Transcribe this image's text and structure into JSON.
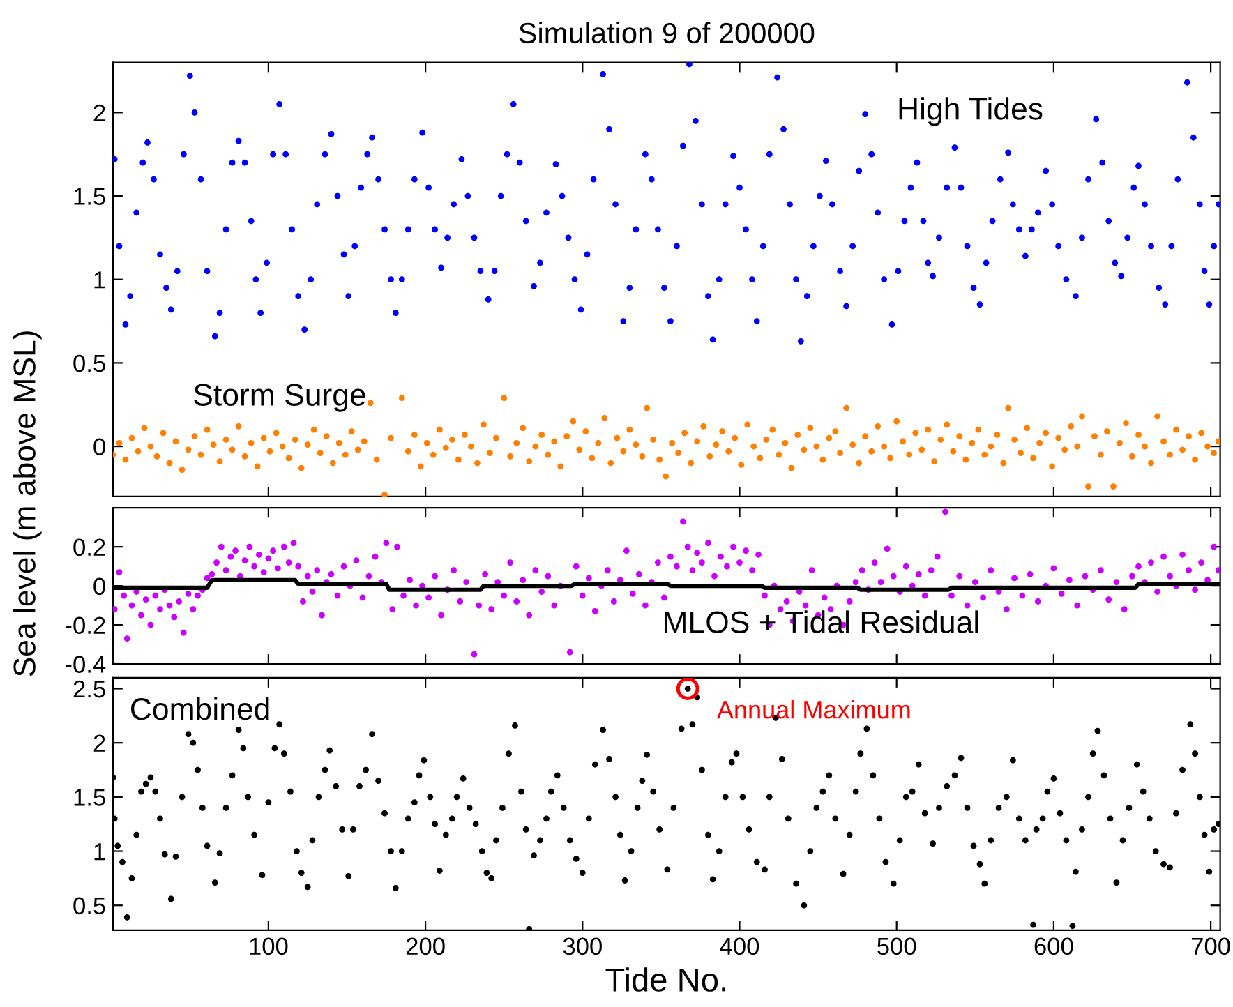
{
  "chart_data": [
    {
      "type": "scatter",
      "title": "Simulation 9 of 200000",
      "annotations": [
        "High Tides",
        "Storm Surge"
      ],
      "xlim": [
        1,
        706
      ],
      "ylim": [
        -0.3,
        2.3
      ],
      "xticks": [
        100,
        200,
        300,
        400,
        500,
        600,
        700
      ],
      "yticks": [
        0,
        0.5,
        1,
        1.5,
        2
      ],
      "tick_labels": "y",
      "series": [
        {
          "color": "#0000ff",
          "marker": "circle",
          "x": [
            1,
            2,
            5,
            9,
            12,
            16,
            20,
            23,
            27,
            31,
            35,
            38,
            42,
            46,
            50,
            53,
            57,
            61,
            66,
            69,
            73,
            77,
            81,
            85,
            89,
            92,
            95,
            99,
            103,
            107,
            111,
            115,
            119,
            123,
            127,
            131,
            136,
            140,
            144,
            148,
            151,
            155,
            159,
            163,
            166,
            170,
            174,
            178,
            181,
            185,
            189,
            193,
            198,
            202,
            206,
            210,
            214,
            218,
            223,
            227,
            231,
            235,
            240,
            244,
            248,
            252,
            256,
            260,
            264,
            269,
            273,
            277,
            283,
            287,
            291,
            295,
            299,
            303,
            307,
            313,
            317,
            321,
            326,
            330,
            334,
            340,
            344,
            348,
            352,
            356,
            360,
            364,
            368,
            372,
            376,
            380,
            383,
            387,
            391,
            396,
            400,
            404,
            408,
            411,
            415,
            419,
            424,
            428,
            432,
            436,
            439,
            443,
            447,
            451,
            455,
            459,
            464,
            468,
            472,
            476,
            480,
            484,
            488,
            492,
            497,
            501,
            505,
            509,
            513,
            517,
            520,
            523,
            527,
            532,
            537,
            541,
            545,
            549,
            553,
            557,
            561,
            566,
            571,
            574,
            578,
            582,
            586,
            590,
            595,
            599,
            603,
            608,
            614,
            618,
            622,
            627,
            631,
            635,
            639,
            643,
            647,
            651,
            654,
            658,
            662,
            667,
            671,
            675,
            679,
            685,
            689,
            693,
            696,
            699,
            702,
            705
          ],
          "values": [
            1.72,
            1.72,
            1.2,
            0.73,
            0.9,
            1.4,
            1.7,
            1.82,
            1.6,
            1.15,
            0.95,
            0.82,
            1.05,
            1.75,
            2.22,
            2.0,
            1.6,
            1.05,
            0.66,
            0.8,
            1.3,
            1.7,
            1.83,
            1.7,
            1.35,
            1.0,
            0.8,
            1.1,
            1.75,
            2.05,
            1.75,
            1.3,
            0.9,
            0.7,
            1.0,
            1.45,
            1.75,
            1.87,
            1.5,
            1.15,
            0.9,
            1.2,
            1.55,
            1.75,
            1.85,
            1.6,
            1.3,
            1.0,
            0.8,
            1.0,
            1.3,
            1.6,
            1.88,
            1.55,
            1.3,
            1.07,
            1.25,
            1.45,
            1.72,
            1.5,
            1.25,
            1.05,
            0.88,
            1.05,
            1.5,
            1.75,
            2.05,
            1.7,
            1.35,
            0.96,
            1.1,
            1.4,
            1.69,
            1.5,
            1.25,
            1.0,
            0.82,
            1.15,
            1.6,
            2.23,
            1.9,
            1.45,
            0.75,
            0.95,
            1.3,
            1.75,
            1.6,
            1.3,
            0.95,
            0.75,
            1.2,
            1.8,
            2.29,
            1.95,
            1.45,
            0.9,
            0.64,
            1.0,
            1.45,
            1.74,
            1.55,
            1.3,
            1.0,
            0.75,
            1.2,
            1.75,
            2.21,
            1.9,
            1.45,
            1.0,
            0.63,
            0.9,
            1.2,
            1.5,
            1.71,
            1.45,
            1.05,
            0.84,
            1.2,
            1.65,
            1.99,
            1.75,
            1.4,
            1.0,
            0.73,
            1.05,
            1.35,
            1.55,
            1.7,
            1.35,
            1.1,
            1.02,
            1.25,
            1.55,
            1.79,
            1.55,
            1.2,
            0.95,
            0.85,
            1.1,
            1.35,
            1.6,
            1.76,
            1.45,
            1.3,
            1.14,
            1.3,
            1.4,
            1.65,
            1.45,
            1.2,
            1.0,
            0.9,
            1.25,
            1.6,
            1.96,
            1.7,
            1.35,
            1.1,
            1.02,
            1.25,
            1.55,
            1.68,
            1.45,
            1.2,
            0.95,
            0.85,
            1.2,
            1.6,
            2.18,
            1.85,
            1.45,
            1.05,
            0.85,
            1.2,
            1.45
          ]
        },
        {
          "color": "#ff8000",
          "marker": "circle",
          "x": [
            1,
            5,
            9,
            13,
            17,
            21,
            25,
            29,
            33,
            37,
            41,
            45,
            49,
            53,
            57,
            61,
            65,
            69,
            73,
            77,
            81,
            85,
            89,
            93,
            97,
            101,
            105,
            109,
            113,
            117,
            121,
            125,
            129,
            133,
            137,
            141,
            145,
            149,
            153,
            157,
            161,
            165,
            169,
            174,
            178,
            185,
            189,
            193,
            197,
            201,
            205,
            209,
            213,
            217,
            221,
            225,
            229,
            233,
            237,
            241,
            245,
            250,
            254,
            258,
            262,
            266,
            270,
            274,
            278,
            282,
            286,
            290,
            294,
            298,
            302,
            306,
            310,
            314,
            318,
            322,
            326,
            330,
            334,
            338,
            341,
            345,
            349,
            353,
            357,
            361,
            365,
            369,
            373,
            377,
            381,
            385,
            389,
            393,
            397,
            401,
            405,
            409,
            413,
            417,
            421,
            425,
            429,
            433,
            437,
            441,
            445,
            449,
            453,
            457,
            461,
            464,
            468,
            472,
            476,
            480,
            484,
            488,
            492,
            496,
            500,
            504,
            508,
            512,
            516,
            520,
            524,
            528,
            532,
            536,
            540,
            544,
            548,
            552,
            556,
            560,
            564,
            568,
            571,
            575,
            579,
            583,
            587,
            591,
            595,
            599,
            603,
            607,
            611,
            615,
            618,
            622,
            626,
            630,
            634,
            638,
            642,
            646,
            650,
            654,
            658,
            662,
            666,
            670,
            674,
            678,
            682,
            686,
            690,
            694,
            698,
            702,
            705
          ],
          "values": [
            -0.05,
            0.02,
            -0.08,
            0.05,
            -0.03,
            0.11,
            0.0,
            -0.06,
            0.08,
            -0.1,
            0.03,
            -0.14,
            -0.02,
            0.06,
            -0.05,
            0.1,
            0.01,
            -0.09,
            0.04,
            -0.02,
            0.12,
            -0.06,
            0.02,
            -0.12,
            0.05,
            -0.03,
            0.08,
            0.0,
            -0.07,
            0.04,
            -0.13,
            0.01,
            0.1,
            -0.04,
            0.06,
            -0.1,
            0.02,
            -0.05,
            0.09,
            -0.02,
            0.03,
            0.26,
            -0.08,
            -0.29,
            0.05,
            0.29,
            -0.03,
            0.07,
            -0.12,
            0.02,
            -0.05,
            0.1,
            -0.01,
            0.04,
            -0.08,
            0.07,
            0.0,
            -0.1,
            0.13,
            -0.04,
            0.05,
            0.29,
            -0.06,
            0.02,
            0.11,
            -0.09,
            0.0,
            0.07,
            -0.05,
            0.03,
            -0.12,
            0.06,
            0.15,
            -0.02,
            0.09,
            -0.07,
            0.02,
            0.17,
            -0.1,
            0.05,
            -0.03,
            0.1,
            0.01,
            -0.06,
            0.23,
            0.04,
            -0.08,
            -0.18,
            0.02,
            -0.04,
            0.08,
            -0.1,
            0.03,
            0.12,
            -0.06,
            0.01,
            0.09,
            -0.03,
            0.05,
            -0.11,
            0.13,
            0.0,
            -0.07,
            0.04,
            0.1,
            -0.05,
            0.02,
            -0.13,
            0.07,
            -0.02,
            0.11,
            0.0,
            -0.08,
            0.05,
            0.09,
            -0.04,
            0.23,
            0.01,
            -0.1,
            0.06,
            -0.03,
            0.12,
            0.0,
            -0.07,
            0.15,
            0.03,
            -0.05,
            0.08,
            -0.02,
            0.1,
            -0.09,
            0.04,
            0.13,
            -0.03,
            0.06,
            -0.08,
            0.02,
            0.1,
            -0.05,
            0.0,
            0.07,
            -0.1,
            0.23,
            0.04,
            -0.04,
            0.11,
            -0.07,
            0.02,
            0.08,
            -0.12,
            0.05,
            -0.02,
            0.12,
            0.0,
            0.18,
            -0.24,
            0.06,
            -0.05,
            0.09,
            -0.24,
            0.02,
            0.14,
            -0.06,
            0.07,
            0.0,
            -0.1,
            0.18,
            0.03,
            -0.05,
            0.1,
            -0.02,
            0.06,
            -0.08,
            0.08,
            0.0,
            -0.04,
            0.03
          ]
        }
      ]
    },
    {
      "type": "scatter",
      "ylabel": "Sea level (m above MSL)",
      "annotations": [
        "MLOS + Tidal Residual"
      ],
      "xlim": [
        1,
        706
      ],
      "ylim": [
        -0.4,
        0.4
      ],
      "xticks": [
        100,
        200,
        300,
        400,
        500,
        600,
        700
      ],
      "yticks": [
        -0.4,
        -0.2,
        0,
        0.2
      ],
      "tick_labels": "y",
      "series": [
        {
          "color": "#cc00ff",
          "marker": "circle",
          "x": [
            2,
            5,
            8,
            10,
            13,
            16,
            19,
            22,
            25,
            28,
            31,
            34,
            37,
            40,
            43,
            46,
            49,
            52,
            55,
            58,
            61,
            64,
            67,
            70,
            73,
            76,
            79,
            82,
            85,
            88,
            91,
            94,
            97,
            100,
            103,
            106,
            110,
            113,
            116,
            119,
            122,
            125,
            128,
            131,
            134,
            137,
            140,
            144,
            148,
            152,
            156,
            160,
            164,
            168,
            172,
            175,
            179,
            182,
            186,
            190,
            194,
            198,
            202,
            206,
            210,
            214,
            218,
            222,
            226,
            231,
            234,
            238,
            242,
            246,
            250,
            254,
            258,
            262,
            266,
            270,
            274,
            278,
            282,
            286,
            292,
            296,
            300,
            304,
            308,
            312,
            316,
            320,
            324,
            328,
            332,
            336,
            340,
            344,
            348,
            352,
            356,
            360,
            364,
            367,
            370,
            373,
            376,
            380,
            384,
            388,
            392,
            396,
            400,
            404,
            408,
            412,
            416,
            419,
            422,
            426,
            430,
            434,
            438,
            442,
            446,
            450,
            454,
            458,
            462,
            466,
            470,
            474,
            478,
            482,
            486,
            490,
            494,
            498,
            502,
            506,
            510,
            514,
            518,
            522,
            526,
            531,
            535,
            540,
            545,
            550,
            555,
            560,
            565,
            570,
            575,
            580,
            585,
            590,
            595,
            600,
            605,
            610,
            615,
            620,
            625,
            630,
            635,
            640,
            645,
            650,
            654,
            658,
            662,
            666,
            670,
            674,
            678,
            682,
            686,
            690,
            694,
            698,
            702,
            705
          ],
          "values": [
            -0.12,
            0.07,
            -0.05,
            -0.27,
            -0.1,
            -0.03,
            -0.15,
            -0.07,
            -0.2,
            -0.05,
            -0.12,
            -0.02,
            -0.1,
            -0.16,
            -0.08,
            -0.24,
            -0.04,
            -0.12,
            -0.05,
            -0.02,
            0.04,
            0.06,
            0.12,
            0.2,
            0.08,
            0.15,
            0.18,
            0.05,
            0.13,
            0.2,
            0.1,
            0.16,
            0.07,
            0.14,
            0.18,
            0.09,
            0.2,
            0.12,
            0.22,
            0.1,
            -0.08,
            0.05,
            -0.03,
            0.08,
            -0.15,
            0.02,
            0.06,
            -0.05,
            0.1,
            0.0,
            0.13,
            -0.06,
            0.05,
            0.15,
            0.02,
            0.22,
            -0.12,
            0.2,
            -0.05,
            0.03,
            -0.1,
            0.0,
            -0.06,
            0.05,
            -0.15,
            -0.02,
            0.08,
            -0.08,
            0.02,
            -0.35,
            -0.1,
            0.06,
            -0.12,
            0.02,
            -0.05,
            0.12,
            -0.08,
            0.03,
            -0.15,
            0.08,
            -0.03,
            0.05,
            -0.1,
            0.0,
            -0.34,
            0.1,
            -0.05,
            0.04,
            -0.13,
            0.0,
            0.08,
            -0.08,
            0.03,
            0.18,
            -0.04,
            0.06,
            -0.1,
            0.02,
            0.12,
            -0.06,
            0.15,
            0.1,
            0.33,
            0.2,
            0.08,
            0.17,
            0.12,
            0.22,
            0.05,
            0.15,
            0.1,
            0.2,
            0.12,
            0.18,
            0.08,
            0.16,
            -0.05,
            -0.2,
            0.0,
            -0.12,
            -0.08,
            -0.18,
            -0.03,
            -0.1,
            0.08,
            -0.15,
            -0.06,
            -0.12,
            0.0,
            -0.2,
            -0.08,
            0.02,
            0.08,
            -0.02,
            0.12,
            0.02,
            0.19,
            0.05,
            -0.03,
            0.1,
            0.0,
            0.06,
            -0.05,
            0.08,
            0.15,
            0.38,
            -0.05,
            0.05,
            -0.1,
            0.02,
            -0.06,
            0.08,
            -0.03,
            -0.12,
            0.04,
            -0.05,
            0.06,
            -0.08,
            0.0,
            0.09,
            -0.04,
            0.03,
            -0.1,
            0.05,
            -0.02,
            0.08,
            -0.07,
            0.02,
            -0.12,
            0.05,
            0.1,
            0.02,
            0.12,
            -0.03,
            0.15,
            0.05,
            0.0,
            0.16,
            0.08,
            -0.02,
            0.12,
            0.03,
            0.2,
            0.08
          ]
        },
        {
          "type": "line",
          "color": "#000000",
          "x": [
            1,
            61,
            64,
            117,
            119,
            175,
            177,
            235,
            237,
            293,
            295,
            354,
            356,
            414,
            416,
            475,
            477,
            533,
            535,
            652,
            654,
            705
          ],
          "values": [
            -0.01,
            -0.01,
            0.03,
            0.03,
            0.01,
            0.01,
            -0.02,
            -0.02,
            0,
            0,
            0.01,
            0.01,
            0,
            0,
            -0.01,
            -0.01,
            -0.02,
            -0.02,
            -0.01,
            -0.01,
            0.01,
            0.01
          ]
        }
      ]
    },
    {
      "type": "scatter",
      "xlabel": "Tide No.",
      "annotations": [
        "Combined",
        {
          "text": "Annual Maximum",
          "x": 367,
          "y": 2.5
        }
      ],
      "xlim": [
        1,
        706
      ],
      "ylim": [
        0.27,
        2.6
      ],
      "xticks": [
        100,
        200,
        300,
        400,
        500,
        600,
        700
      ],
      "yticks": [
        0.5,
        1,
        1.5,
        2,
        2.5
      ],
      "series": [
        {
          "color": "#000000",
          "marker": "circle",
          "x": [
            1,
            2,
            4,
            7,
            10,
            13,
            16,
            19,
            22,
            25,
            28,
            31,
            34,
            38,
            41,
            45,
            49,
            52,
            55,
            58,
            61,
            66,
            69,
            73,
            77,
            81,
            84,
            87,
            91,
            96,
            100,
            104,
            107,
            110,
            114,
            118,
            121,
            125,
            128,
            132,
            136,
            139,
            143,
            147,
            151,
            154,
            158,
            162,
            166,
            170,
            174,
            178,
            181,
            185,
            189,
            193,
            196,
            199,
            203,
            206,
            209,
            213,
            217,
            220,
            224,
            228,
            232,
            236,
            239,
            242,
            245,
            249,
            253,
            257,
            261,
            264,
            266,
            269,
            273,
            277,
            280,
            284,
            288,
            292,
            296,
            300,
            304,
            308,
            313,
            317,
            321,
            324,
            327,
            331,
            335,
            338,
            341,
            345,
            349,
            354,
            358,
            363,
            367,
            370,
            373,
            376,
            380,
            383,
            387,
            391,
            395,
            398,
            402,
            406,
            411,
            416,
            419,
            423,
            427,
            431,
            436,
            441,
            445,
            449,
            453,
            457,
            461,
            466,
            470,
            474,
            477,
            481,
            485,
            489,
            493,
            498,
            502,
            506,
            510,
            514,
            518,
            523,
            527,
            532,
            537,
            541,
            545,
            549,
            553,
            556,
            560,
            565,
            570,
            574,
            578,
            582,
            587,
            589,
            593,
            596,
            600,
            604,
            608,
            612,
            614,
            618,
            622,
            625,
            628,
            632,
            636,
            640,
            644,
            648,
            653,
            657,
            661,
            665,
            670,
            674,
            678,
            682,
            687,
            690,
            693,
            696,
            699,
            702,
            705
          ],
          "values": [
            1.68,
            1.3,
            1.05,
            0.9,
            0.39,
            0.75,
            1.15,
            1.55,
            1.62,
            1.68,
            1.55,
            1.3,
            0.97,
            0.56,
            0.95,
            1.5,
            2.08,
            2.0,
            1.75,
            1.4,
            1.05,
            0.71,
            0.98,
            1.4,
            1.7,
            2.12,
            1.95,
            1.5,
            1.15,
            0.78,
            1.45,
            1.95,
            2.17,
            1.9,
            1.55,
            1.0,
            0.8,
            0.67,
            1.1,
            1.5,
            1.75,
            1.93,
            1.6,
            1.2,
            0.77,
            1.2,
            1.6,
            1.75,
            2.08,
            1.65,
            1.35,
            1.0,
            0.66,
            1.0,
            1.3,
            1.45,
            1.7,
            1.84,
            1.5,
            1.25,
            0.82,
            1.15,
            1.3,
            1.5,
            1.67,
            1.4,
            1.25,
            1.0,
            0.8,
            0.75,
            1.1,
            1.4,
            1.9,
            2.16,
            1.55,
            1.2,
            0.28,
            0.96,
            1.1,
            1.3,
            1.55,
            1.7,
            1.4,
            1.1,
            0.93,
            0.8,
            1.3,
            1.8,
            2.12,
            1.85,
            1.5,
            1.15,
            0.73,
            1.0,
            1.4,
            1.65,
            1.89,
            1.55,
            1.2,
            0.83,
            1.4,
            2.13,
            2.5,
            2.17,
            2.42,
            1.75,
            1.15,
            0.74,
            1.0,
            1.5,
            1.82,
            1.9,
            1.5,
            1.2,
            0.9,
            0.83,
            1.5,
            2.23,
            1.85,
            1.3,
            0.7,
            0.5,
            1.0,
            1.4,
            1.55,
            1.7,
            1.3,
            0.79,
            1.15,
            1.55,
            1.9,
            2.13,
            1.7,
            1.3,
            0.9,
            0.7,
            1.1,
            1.5,
            1.55,
            1.8,
            1.35,
            1.07,
            1.4,
            1.6,
            1.7,
            1.86,
            1.4,
            1.05,
            0.88,
            0.7,
            1.1,
            1.4,
            1.5,
            1.84,
            1.3,
            1.1,
            0.32,
            1.2,
            1.3,
            1.55,
            1.67,
            1.35,
            1.1,
            0.31,
            0.81,
            1.2,
            1.5,
            1.9,
            2.11,
            1.7,
            1.3,
            0.71,
            1.1,
            1.4,
            1.8,
            1.55,
            1.3,
            1.0,
            0.88,
            0.85,
            1.35,
            1.75,
            2.17,
            1.9,
            1.5,
            1.15,
            0.81,
            1.2,
            1.25
          ]
        }
      ]
    }
  ]
}
